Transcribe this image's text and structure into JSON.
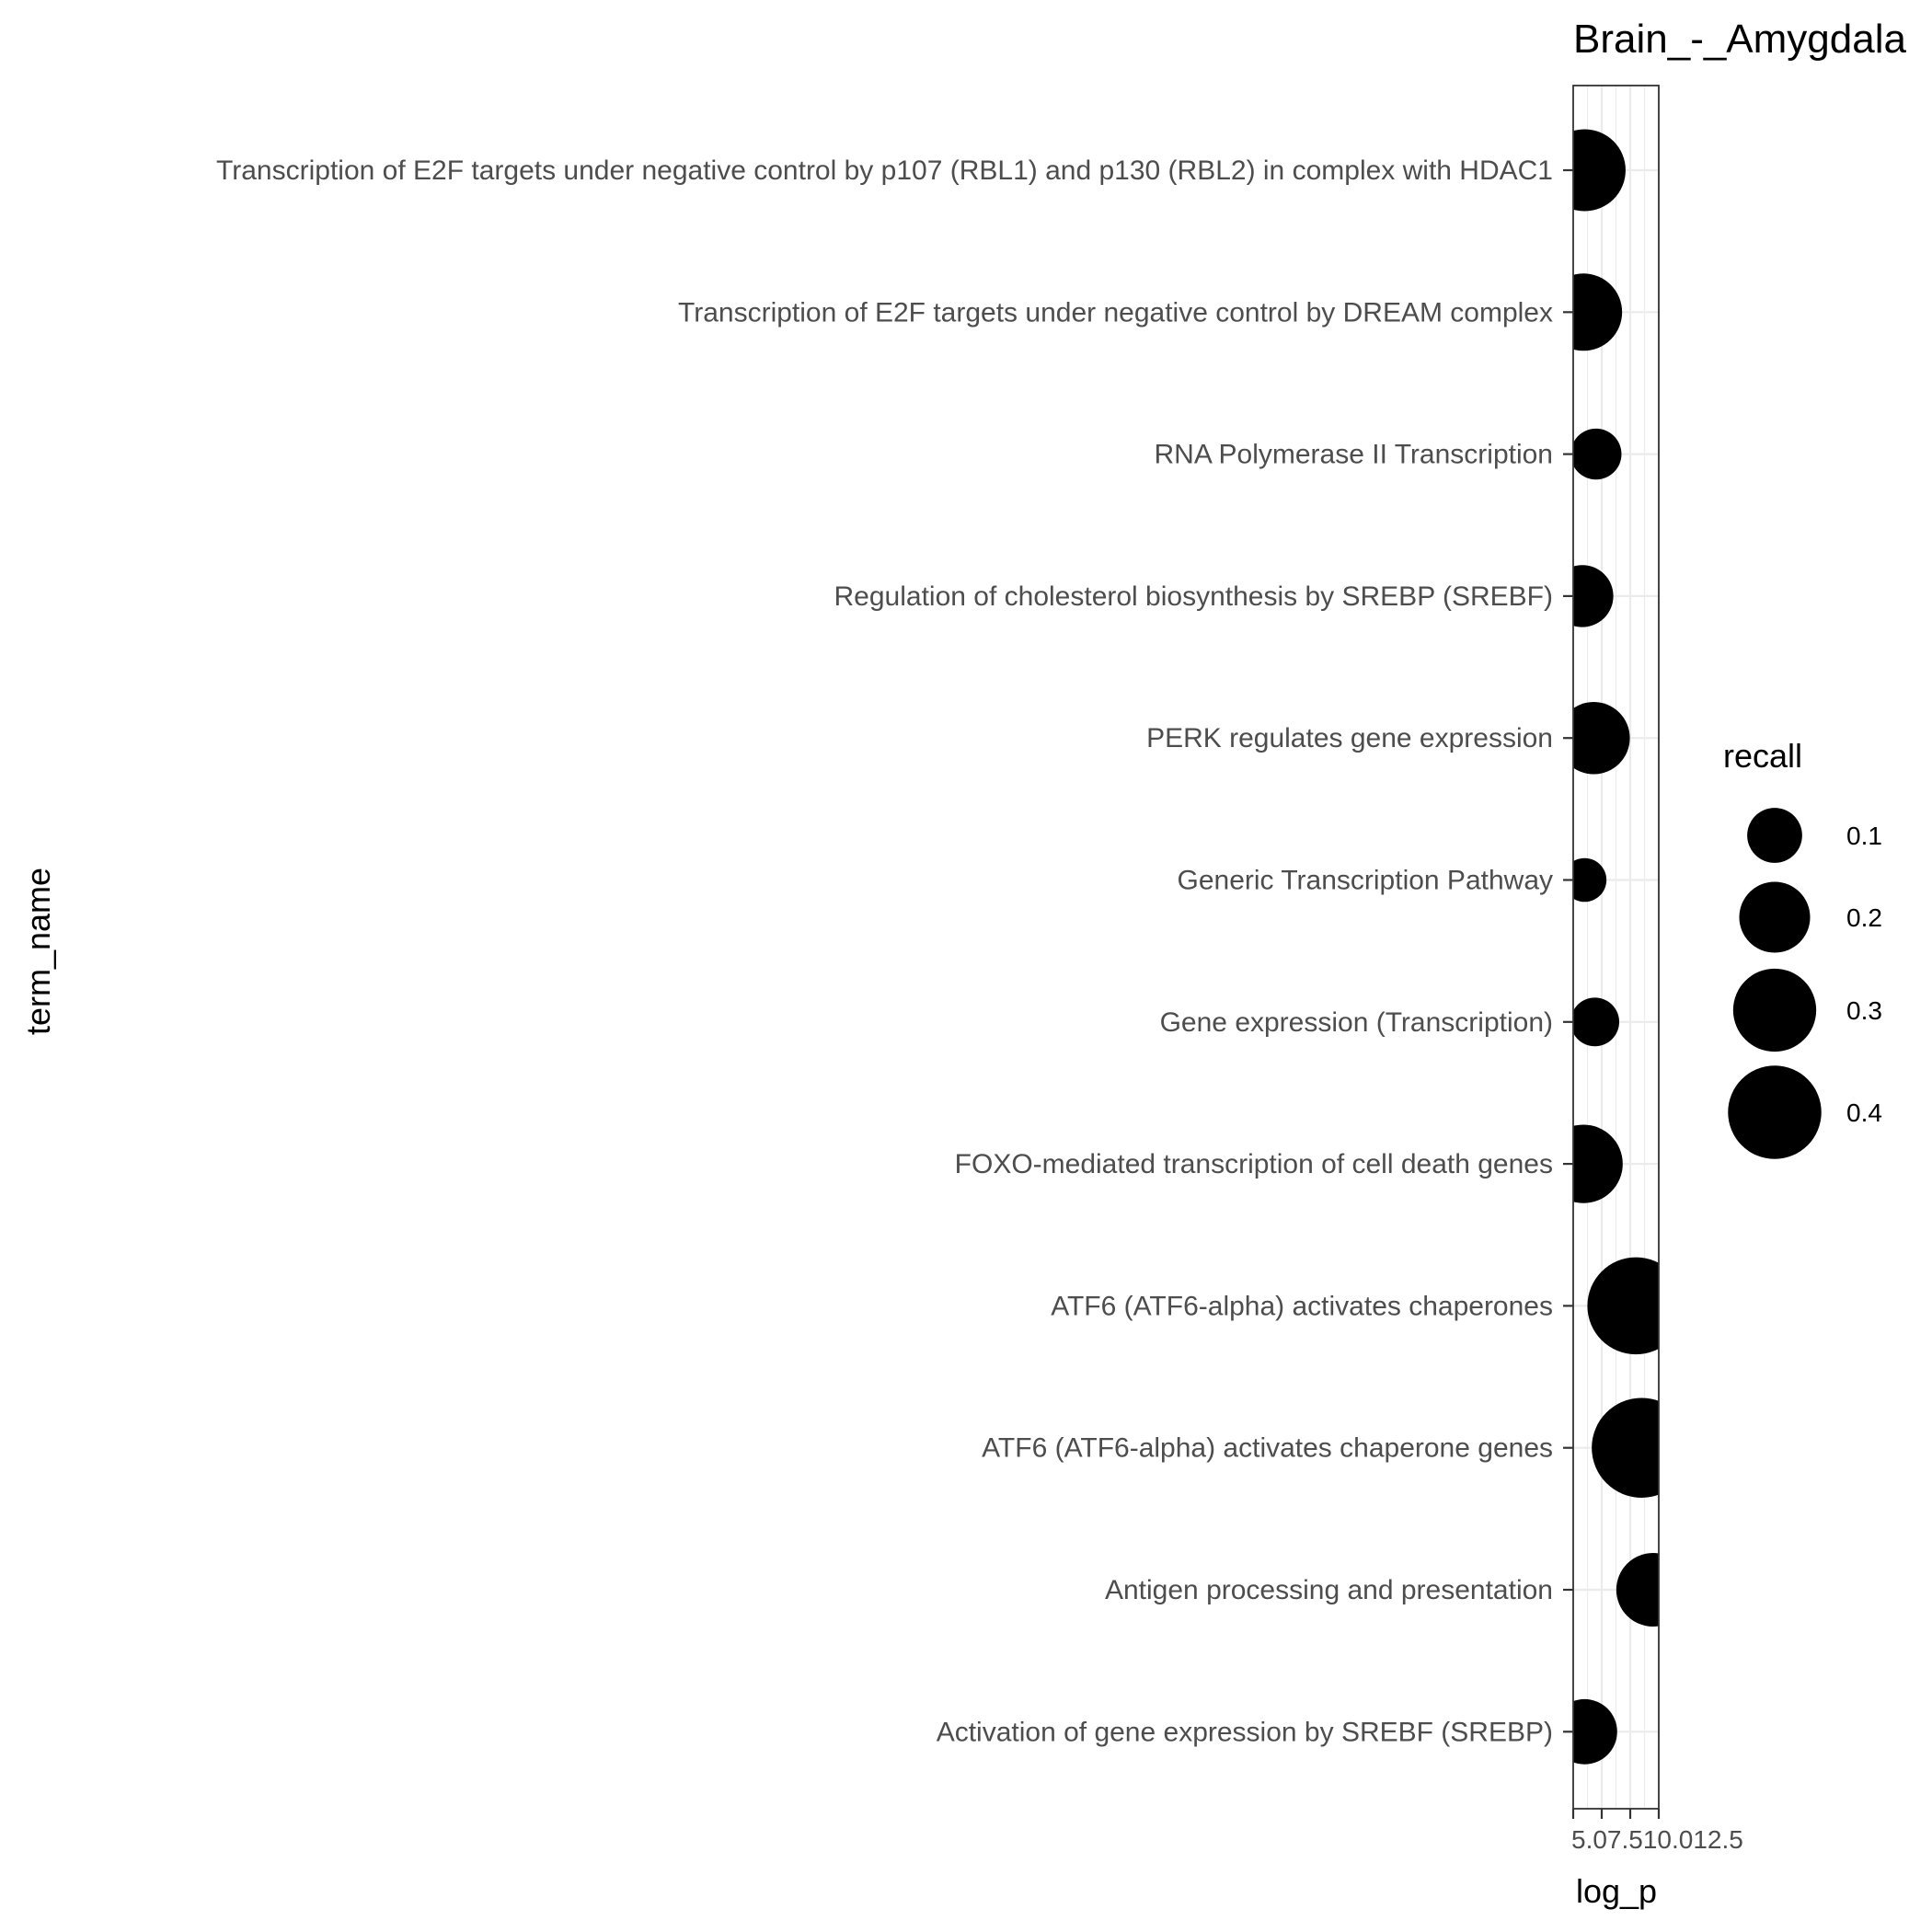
{
  "chart_data": {
    "type": "scatter",
    "title": "Brain_-_Amygdala",
    "xlabel": "log_p",
    "ylabel": "term_name",
    "xlim": [
      5.0,
      12.5
    ],
    "x_ticks": [
      7.5,
      10.0,
      12.5
    ],
    "x_tick_labels": [
      "5.07.510.012.5"
    ],
    "grid": true,
    "legend": {
      "title": "recall",
      "position": "right",
      "entries": [
        {
          "label": "0.1",
          "value": 0.1
        },
        {
          "label": "0.2",
          "value": 0.2
        },
        {
          "label": "0.3",
          "value": 0.3
        },
        {
          "label": "0.4",
          "value": 0.4
        }
      ]
    },
    "point_color": "#000000",
    "categories": [
      "Transcription of E2F targets under negative control by p107 (RBL1) and p130 (RBL2) in complex with HDAC1",
      "Transcription of E2F targets under negative control by DREAM complex",
      "RNA Polymerase II Transcription",
      "Regulation of cholesterol biosynthesis by SREBP (SREBF)",
      "PERK regulates gene expression",
      "Generic Transcription Pathway",
      "Gene expression (Transcription)",
      "FOXO-mediated transcription of cell death genes",
      "ATF6 (ATF6-alpha) activates chaperones",
      "ATF6 (ATF6-alpha) activates chaperone genes",
      "Antigen processing and presentation",
      "Activation of gene expression by SREBF (SREBP)"
    ],
    "points": [
      {
        "term": "Transcription of E2F targets under negative control by p107 (RBL1) and p130 (RBL2) in complex with HDAC1",
        "log_p": 6.0,
        "recall": 0.29
      },
      {
        "term": "Transcription of E2F targets under negative control by DREAM complex",
        "log_p": 5.9,
        "recall": 0.25
      },
      {
        "term": "RNA Polymerase II Transcription",
        "log_p": 7.0,
        "recall": 0.08
      },
      {
        "term": "Regulation of cholesterol biosynthesis by SREBP (SREBF)",
        "log_p": 5.8,
        "recall": 0.14
      },
      {
        "term": "PERK regulates gene expression",
        "log_p": 6.8,
        "recall": 0.21
      },
      {
        "term": "Generic Transcription Pathway",
        "log_p": 6.0,
        "recall": 0.05
      },
      {
        "term": "Gene expression (Transcription)",
        "log_p": 6.9,
        "recall": 0.07
      },
      {
        "term": "FOXO-mediated transcription of cell death genes",
        "log_p": 5.9,
        "recall": 0.26
      },
      {
        "term": "ATF6 (ATF6-alpha) activates chaperones",
        "log_p": 10.5,
        "recall": 0.44
      },
      {
        "term": "ATF6 (ATF6-alpha) activates chaperone genes",
        "log_p": 11.0,
        "recall": 0.47
      },
      {
        "term": "Antigen processing and presentation",
        "log_p": 12.0,
        "recall": 0.22
      },
      {
        "term": "Activation of gene expression by SREBF (SREBP)",
        "log_p": 6.0,
        "recall": 0.16
      }
    ]
  }
}
